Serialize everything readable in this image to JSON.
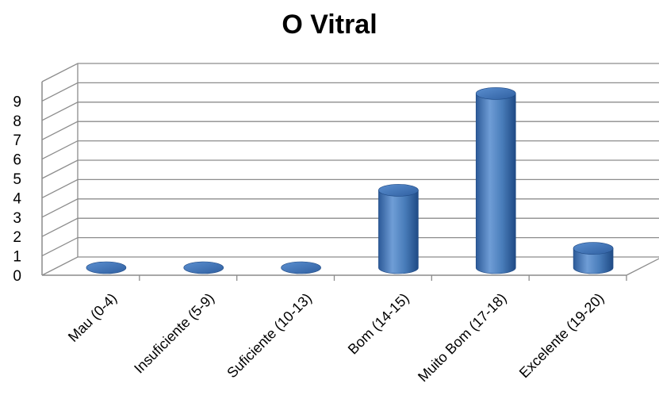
{
  "chart_data": {
    "type": "bar",
    "style": "3d-cylinder",
    "title": "O Vitral",
    "xlabel": "",
    "ylabel": "",
    "categories": [
      "Mau (0-4)",
      "Insuficiente (5-9)",
      "Suficiente (10-13)",
      "Bom (14-15)",
      "Muito Bom (17-18)",
      "Excelente (19-20)"
    ],
    "series": [
      {
        "values": [
          0,
          0,
          0,
          4,
          9,
          1
        ]
      }
    ],
    "yticks": [
      "0",
      "1",
      "2",
      "3",
      "4",
      "5",
      "6",
      "7",
      "8",
      "9"
    ],
    "ylim": [
      0,
      10
    ],
    "grid": true,
    "legend": "none",
    "colors": {
      "bar": "#4a7ebb",
      "bar_dark": "#1f4a85",
      "bar_light": "#8fb4e3",
      "grid": "#8c8c8c",
      "text": "#000000"
    }
  }
}
